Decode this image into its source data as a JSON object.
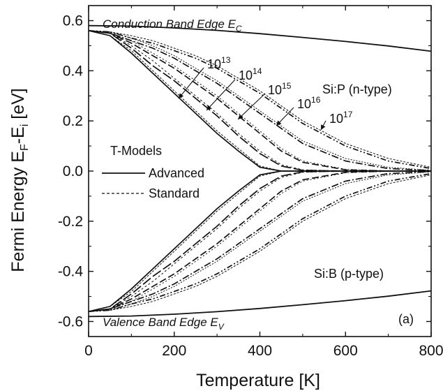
{
  "chart_data": {
    "type": "line",
    "panel_label": "(a)",
    "xlabel": "Temperature  [K]",
    "ylabel_main": "Fermi Energy E",
    "ylabel_sub1": "F",
    "ylabel_mid": "-E",
    "ylabel_sub2": "i",
    "ylabel_unit": "  [eV]",
    "xlim": [
      0,
      800
    ],
    "ylim": [
      -0.66,
      0.66
    ],
    "xticks": [
      0,
      200,
      400,
      600,
      800
    ],
    "xtick_labels": [
      "0",
      "200",
      "400",
      "600",
      "800"
    ],
    "yticks": [
      0.6,
      0.4,
      0.2,
      0.0,
      -0.2,
      -0.4,
      -0.6
    ],
    "ytick_labels": [
      "0.6",
      "0.4",
      "0.2",
      "0.0",
      "-0.2",
      "-0.4",
      "-0.6"
    ],
    "annotations": {
      "conduction_main": "Conduction Band Edge E",
      "conduction_sub": "C",
      "valence_main": "Valence Band Edge E",
      "valence_sub": "V",
      "n_type": "Si:P (n-type)",
      "p_type": "Si:B (p-type)"
    },
    "legend": {
      "title": "T-Models",
      "entries": [
        {
          "label": "Advanced",
          "style": "solid"
        },
        {
          "label": "Standard",
          "style": "dashed"
        }
      ]
    },
    "doping_labels": [
      {
        "base": "10",
        "exp": "13"
      },
      {
        "base": "10",
        "exp": "14"
      },
      {
        "base": "10",
        "exp": "15"
      },
      {
        "base": "10",
        "exp": "16"
      },
      {
        "base": "10",
        "exp": "17"
      }
    ],
    "conduction_band_edge": {
      "x": [
        0,
        100,
        200,
        300,
        400,
        500,
        600,
        700,
        800
      ],
      "y": [
        0.58,
        0.578,
        0.571,
        0.561,
        0.548,
        0.533,
        0.517,
        0.499,
        0.478
      ]
    },
    "valence_band_edge": {
      "x": [
        0,
        100,
        200,
        300,
        400,
        500,
        600,
        700,
        800
      ],
      "y": [
        -0.58,
        -0.578,
        -0.571,
        -0.561,
        -0.548,
        -0.533,
        -0.517,
        -0.499,
        -0.478
      ]
    },
    "n_type_series": [
      {
        "doping_exp": 13,
        "model": "Advanced",
        "x": [
          0,
          50,
          100,
          150,
          200,
          250,
          300,
          350,
          400,
          450,
          500,
          600,
          700,
          800
        ],
        "y": [
          0.56,
          0.54,
          0.47,
          0.39,
          0.31,
          0.23,
          0.15,
          0.08,
          0.015,
          0.0,
          0.0,
          0.0,
          0.0,
          0.0
        ]
      },
      {
        "doping_exp": 14,
        "model": "Advanced",
        "x": [
          0,
          50,
          100,
          150,
          200,
          250,
          300,
          350,
          400,
          450,
          500,
          600,
          700,
          800
        ],
        "y": [
          0.56,
          0.55,
          0.49,
          0.42,
          0.36,
          0.29,
          0.22,
          0.14,
          0.07,
          0.02,
          0.003,
          0.0,
          0.0,
          0.0
        ]
      },
      {
        "doping_exp": 15,
        "model": "Advanced",
        "x": [
          0,
          50,
          100,
          150,
          200,
          250,
          300,
          350,
          400,
          450,
          500,
          600,
          700,
          800
        ],
        "y": [
          0.56,
          0.55,
          0.51,
          0.46,
          0.41,
          0.35,
          0.29,
          0.22,
          0.15,
          0.08,
          0.035,
          0.005,
          0.0,
          0.0
        ]
      },
      {
        "doping_exp": 16,
        "model": "Advanced",
        "x": [
          0,
          50,
          100,
          150,
          200,
          250,
          300,
          350,
          400,
          450,
          500,
          600,
          700,
          800
        ],
        "y": [
          0.56,
          0.55,
          0.52,
          0.49,
          0.45,
          0.4,
          0.35,
          0.29,
          0.23,
          0.17,
          0.11,
          0.04,
          0.01,
          0.002
        ]
      },
      {
        "doping_exp": 17,
        "model": "Advanced",
        "x": [
          0,
          50,
          100,
          150,
          200,
          250,
          300,
          350,
          400,
          450,
          500,
          600,
          700,
          800
        ],
        "y": [
          0.56,
          0.555,
          0.53,
          0.51,
          0.48,
          0.45,
          0.41,
          0.36,
          0.31,
          0.25,
          0.19,
          0.1,
          0.04,
          0.01
        ]
      },
      {
        "doping_exp": 13,
        "model": "Standard",
        "x": [
          0,
          50,
          100,
          150,
          200,
          250,
          300,
          350,
          400,
          450,
          500,
          600,
          700,
          800
        ],
        "y": [
          0.56,
          0.54,
          0.48,
          0.4,
          0.32,
          0.24,
          0.16,
          0.09,
          0.02,
          0.0,
          0.0,
          0.0,
          0.0,
          0.0
        ]
      },
      {
        "doping_exp": 14,
        "model": "Standard",
        "x": [
          0,
          50,
          100,
          150,
          200,
          250,
          300,
          350,
          400,
          450,
          500,
          600,
          700,
          800
        ],
        "y": [
          0.56,
          0.55,
          0.5,
          0.44,
          0.37,
          0.3,
          0.23,
          0.15,
          0.08,
          0.025,
          0.005,
          0.0,
          0.0,
          0.0
        ]
      },
      {
        "doping_exp": 15,
        "model": "Standard",
        "x": [
          0,
          50,
          100,
          150,
          200,
          250,
          300,
          350,
          400,
          450,
          500,
          600,
          700,
          800
        ],
        "y": [
          0.56,
          0.55,
          0.52,
          0.47,
          0.42,
          0.36,
          0.3,
          0.23,
          0.16,
          0.09,
          0.04,
          0.007,
          0.001,
          0.0
        ]
      },
      {
        "doping_exp": 16,
        "model": "Standard",
        "x": [
          0,
          50,
          100,
          150,
          200,
          250,
          300,
          350,
          400,
          450,
          500,
          600,
          700,
          800
        ],
        "y": [
          0.56,
          0.555,
          0.53,
          0.5,
          0.46,
          0.41,
          0.36,
          0.3,
          0.24,
          0.18,
          0.12,
          0.05,
          0.015,
          0.003
        ]
      },
      {
        "doping_exp": 17,
        "model": "Standard",
        "x": [
          0,
          50,
          100,
          150,
          200,
          250,
          300,
          350,
          400,
          450,
          500,
          600,
          700,
          800
        ],
        "y": [
          0.56,
          0.555,
          0.54,
          0.52,
          0.49,
          0.46,
          0.42,
          0.37,
          0.32,
          0.26,
          0.2,
          0.11,
          0.05,
          0.015
        ]
      }
    ],
    "p_type_series": [
      {
        "doping_exp": 13,
        "model": "Advanced",
        "x": [
          0,
          50,
          100,
          150,
          200,
          250,
          300,
          350,
          400,
          450,
          500,
          600,
          700,
          800
        ],
        "y": [
          -0.56,
          -0.54,
          -0.47,
          -0.39,
          -0.31,
          -0.23,
          -0.15,
          -0.08,
          -0.015,
          0.0,
          0.0,
          0.0,
          0.0,
          0.0
        ]
      },
      {
        "doping_exp": 14,
        "model": "Advanced",
        "x": [
          0,
          50,
          100,
          150,
          200,
          250,
          300,
          350,
          400,
          450,
          500,
          600,
          700,
          800
        ],
        "y": [
          -0.56,
          -0.55,
          -0.49,
          -0.42,
          -0.36,
          -0.29,
          -0.22,
          -0.14,
          -0.07,
          -0.02,
          -0.003,
          0.0,
          0.0,
          0.0
        ]
      },
      {
        "doping_exp": 15,
        "model": "Advanced",
        "x": [
          0,
          50,
          100,
          150,
          200,
          250,
          300,
          350,
          400,
          450,
          500,
          600,
          700,
          800
        ],
        "y": [
          -0.56,
          -0.55,
          -0.51,
          -0.46,
          -0.41,
          -0.35,
          -0.29,
          -0.22,
          -0.15,
          -0.08,
          -0.035,
          -0.005,
          0.0,
          0.0
        ]
      },
      {
        "doping_exp": 16,
        "model": "Advanced",
        "x": [
          0,
          50,
          100,
          150,
          200,
          250,
          300,
          350,
          400,
          450,
          500,
          600,
          700,
          800
        ],
        "y": [
          -0.56,
          -0.55,
          -0.52,
          -0.49,
          -0.45,
          -0.4,
          -0.35,
          -0.29,
          -0.23,
          -0.17,
          -0.11,
          -0.04,
          -0.01,
          -0.002
        ]
      },
      {
        "doping_exp": 17,
        "model": "Advanced",
        "x": [
          0,
          50,
          100,
          150,
          200,
          250,
          300,
          350,
          400,
          450,
          500,
          600,
          700,
          800
        ],
        "y": [
          -0.56,
          -0.555,
          -0.53,
          -0.51,
          -0.48,
          -0.45,
          -0.41,
          -0.36,
          -0.31,
          -0.25,
          -0.19,
          -0.1,
          -0.04,
          -0.01
        ]
      },
      {
        "doping_exp": 13,
        "model": "Standard",
        "x": [
          0,
          50,
          100,
          150,
          200,
          250,
          300,
          350,
          400,
          450,
          500,
          600,
          700,
          800
        ],
        "y": [
          -0.56,
          -0.54,
          -0.48,
          -0.4,
          -0.32,
          -0.24,
          -0.16,
          -0.09,
          -0.02,
          0.0,
          0.0,
          0.0,
          0.0,
          0.0
        ]
      },
      {
        "doping_exp": 14,
        "model": "Standard",
        "x": [
          0,
          50,
          100,
          150,
          200,
          250,
          300,
          350,
          400,
          450,
          500,
          600,
          700,
          800
        ],
        "y": [
          -0.56,
          -0.55,
          -0.5,
          -0.44,
          -0.37,
          -0.3,
          -0.23,
          -0.15,
          -0.08,
          -0.025,
          -0.005,
          0.0,
          0.0,
          0.0
        ]
      },
      {
        "doping_exp": 15,
        "model": "Standard",
        "x": [
          0,
          50,
          100,
          150,
          200,
          250,
          300,
          350,
          400,
          450,
          500,
          600,
          700,
          800
        ],
        "y": [
          -0.56,
          -0.55,
          -0.52,
          -0.47,
          -0.42,
          -0.36,
          -0.3,
          -0.23,
          -0.16,
          -0.09,
          -0.04,
          -0.007,
          -0.001,
          0.0
        ]
      },
      {
        "doping_exp": 16,
        "model": "Standard",
        "x": [
          0,
          50,
          100,
          150,
          200,
          250,
          300,
          350,
          400,
          450,
          500,
          600,
          700,
          800
        ],
        "y": [
          -0.56,
          -0.555,
          -0.53,
          -0.5,
          -0.46,
          -0.41,
          -0.36,
          -0.3,
          -0.24,
          -0.18,
          -0.12,
          -0.05,
          -0.015,
          -0.003
        ]
      },
      {
        "doping_exp": 17,
        "model": "Standard",
        "x": [
          0,
          50,
          100,
          150,
          200,
          250,
          300,
          350,
          400,
          450,
          500,
          600,
          700,
          800
        ],
        "y": [
          -0.56,
          -0.555,
          -0.54,
          -0.52,
          -0.49,
          -0.46,
          -0.42,
          -0.37,
          -0.32,
          -0.26,
          -0.2,
          -0.11,
          -0.05,
          -0.015
        ]
      }
    ]
  }
}
